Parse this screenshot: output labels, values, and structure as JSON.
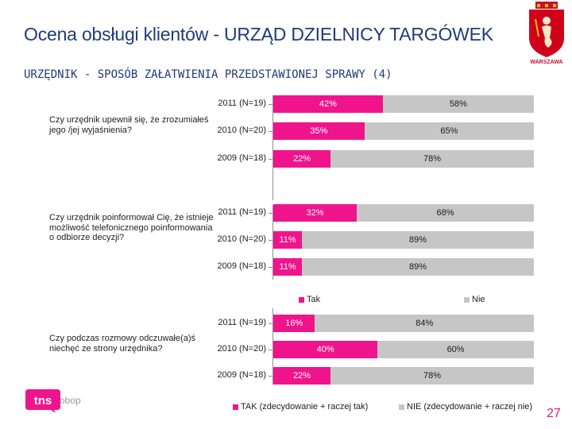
{
  "header": {
    "title": "Ocena obsługi klientów - URZĄD DZIELNICY TARGÓWEK",
    "subtitle": "URZĘDNIK - SPOSÓB ZAŁATWIENIA PRZEDSTAWIONEJ SPRAWY (4)"
  },
  "crest": {
    "label": "WARSZAWA"
  },
  "chart_data": [
    {
      "type": "bar",
      "orientation": "horizontal",
      "stacked": true,
      "question": "Czy urzędnik upewnił się, że zrozumiałeś jego /jej wyjaśnienia?",
      "categories": [
        "2011 (N=19)",
        "2010 (N=20)",
        "2009 (N=18)"
      ],
      "series": [
        {
          "name": "Tak",
          "values": [
            42,
            35,
            22
          ],
          "labels": [
            "42%",
            "35%",
            "22%"
          ]
        },
        {
          "name": "Nie",
          "values": [
            58,
            65,
            78
          ],
          "labels": [
            "58%",
            "65%",
            "78%"
          ]
        }
      ],
      "xlim": [
        0,
        100
      ],
      "legend": []
    },
    {
      "type": "bar",
      "orientation": "horizontal",
      "stacked": true,
      "question": "Czy urzędnik poinformował Cię, że istnieje możliwość telefonicznego poinformowania o odbiorze decyzji?",
      "categories": [
        "2011 (N=19)",
        "2010 (N=20)",
        "2009 (N=18)"
      ],
      "series": [
        {
          "name": "Tak",
          "values": [
            32,
            11,
            11
          ],
          "labels": [
            "32%",
            "11%",
            "11%"
          ]
        },
        {
          "name": "Nie",
          "values": [
            68,
            89,
            89
          ],
          "labels": [
            "68%",
            "89%",
            "89%"
          ]
        }
      ],
      "xlim": [
        0,
        100
      ],
      "legend": [
        "Tak",
        "Nie"
      ]
    },
    {
      "type": "bar",
      "orientation": "horizontal",
      "stacked": true,
      "question": "Czy podczas rozmowy odczuwałe(a)ś niechęć ze strony urzędnika?",
      "categories": [
        "2011 (N=19)",
        "2010 (N=20)",
        "2009 (N=18)"
      ],
      "series": [
        {
          "name": "TAK (zdecydowanie + raczej tak)",
          "values": [
            16,
            40,
            22
          ],
          "labels": [
            "16%",
            "40%",
            "22%"
          ]
        },
        {
          "name": "NIE (zdecydowanie + raczej nie)",
          "values": [
            84,
            60,
            78
          ],
          "labels": [
            "84%",
            "60%",
            "78%"
          ]
        }
      ],
      "xlim": [
        0,
        100
      ],
      "legend": [
        "TAK (zdecydowanie + raczej tak)",
        "NIE (zdecydowanie + raczej nie)"
      ]
    }
  ],
  "colors": {
    "tak": "#ef148c",
    "nie": "#c6c6c6",
    "title": "#1f3b7a",
    "page_number": "#ef148c"
  },
  "footer": {
    "logo_text": "obop",
    "page_number": "27"
  }
}
